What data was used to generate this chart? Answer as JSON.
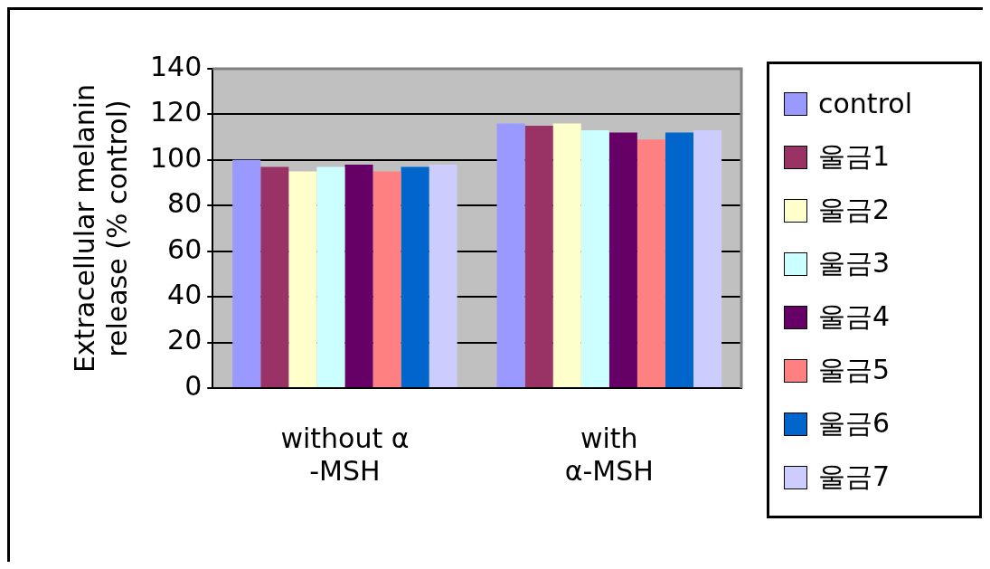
{
  "chart_data": {
    "type": "bar",
    "ylabel": "Extracellular melanin release (% control)",
    "categories": [
      "without α -MSH",
      "with α-MSH"
    ],
    "series": [
      {
        "name": "control",
        "color": "#9999ff",
        "values": [
          100,
          116
        ]
      },
      {
        "name": "울금1",
        "color": "#993366",
        "values": [
          97,
          115
        ]
      },
      {
        "name": "울금2",
        "color": "#ffffcc",
        "values": [
          95,
          116
        ]
      },
      {
        "name": "울금3",
        "color": "#ccffff",
        "values": [
          97,
          113
        ]
      },
      {
        "name": "울금4",
        "color": "#660066",
        "values": [
          98,
          112
        ]
      },
      {
        "name": "울금5",
        "color": "#ff8080",
        "values": [
          95,
          109
        ]
      },
      {
        "name": "울금6",
        "color": "#0066cc",
        "values": [
          97,
          112
        ]
      },
      {
        "name": "울금7",
        "color": "#ccccff",
        "values": [
          98,
          113
        ]
      }
    ],
    "ylim": [
      0,
      140
    ],
    "yticks": [
      0,
      20,
      40,
      60,
      80,
      100,
      120,
      140
    ],
    "grid": "y",
    "legend": "right"
  }
}
